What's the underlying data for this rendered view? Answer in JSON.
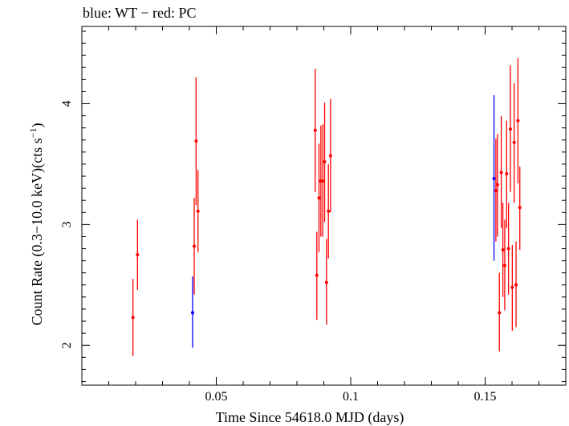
{
  "chart_data": {
    "type": "scatter",
    "title": "blue: WT − red: PC",
    "xlabel": "Time Since 54618.0 MJD (days)",
    "ylabel_main": "Count Rate (0.3−10.0 keV)(cts s",
    "ylabel_sup": "−1",
    "ylabel_end": ")",
    "xlim": [
      0.0,
      0.18
    ],
    "ylim": [
      1.67,
      4.64
    ],
    "x_major_ticks": [
      0.05,
      0.1,
      0.15
    ],
    "x_tick_labels": [
      "0.05",
      "0.1",
      "0.15"
    ],
    "y_major_ticks": [
      2,
      3,
      4
    ],
    "y_tick_labels": [
      "2",
      "3",
      "4"
    ],
    "grid": false,
    "series": [
      {
        "name": "WT",
        "color": "#0000ff",
        "points": [
          {
            "x": 0.0412,
            "y": 2.27,
            "lo": 1.98,
            "hi": 2.57
          },
          {
            "x": 0.1533,
            "y": 3.38,
            "lo": 2.7,
            "hi": 4.07
          }
        ]
      },
      {
        "name": "PC",
        "color": "#ff0000",
        "points": [
          {
            "x": 0.019,
            "y": 2.23,
            "lo": 1.91,
            "hi": 2.55
          },
          {
            "x": 0.0207,
            "y": 2.75,
            "lo": 2.46,
            "hi": 3.04
          },
          {
            "x": 0.0418,
            "y": 2.82,
            "lo": 2.42,
            "hi": 3.22
          },
          {
            "x": 0.0425,
            "y": 3.69,
            "lo": 3.16,
            "hi": 4.22
          },
          {
            "x": 0.0432,
            "y": 3.11,
            "lo": 2.77,
            "hi": 3.45
          },
          {
            "x": 0.0868,
            "y": 3.78,
            "lo": 3.27,
            "hi": 4.29
          },
          {
            "x": 0.0874,
            "y": 2.58,
            "lo": 2.21,
            "hi": 2.94
          },
          {
            "x": 0.0882,
            "y": 3.22,
            "lo": 2.77,
            "hi": 3.67
          },
          {
            "x": 0.0889,
            "y": 3.36,
            "lo": 2.9,
            "hi": 3.82
          },
          {
            "x": 0.0896,
            "y": 3.36,
            "lo": 2.9,
            "hi": 3.83
          },
          {
            "x": 0.0903,
            "y": 3.52,
            "lo": 3.02,
            "hi": 4.01
          },
          {
            "x": 0.091,
            "y": 2.52,
            "lo": 2.17,
            "hi": 2.88
          },
          {
            "x": 0.0917,
            "y": 3.11,
            "lo": 2.72,
            "hi": 3.5
          },
          {
            "x": 0.0925,
            "y": 3.57,
            "lo": 3.1,
            "hi": 4.04
          },
          {
            "x": 0.154,
            "y": 3.28,
            "lo": 2.86,
            "hi": 3.71
          },
          {
            "x": 0.1546,
            "y": 3.33,
            "lo": 2.9,
            "hi": 3.75
          },
          {
            "x": 0.1553,
            "y": 2.27,
            "lo": 1.95,
            "hi": 2.6
          },
          {
            "x": 0.156,
            "y": 3.43,
            "lo": 2.97,
            "hi": 3.9
          },
          {
            "x": 0.1566,
            "y": 2.79,
            "lo": 2.4,
            "hi": 3.18
          },
          {
            "x": 0.1573,
            "y": 2.66,
            "lo": 2.29,
            "hi": 3.04
          },
          {
            "x": 0.158,
            "y": 3.42,
            "lo": 2.97,
            "hi": 3.86
          },
          {
            "x": 0.1587,
            "y": 2.8,
            "lo": 2.42,
            "hi": 3.18
          },
          {
            "x": 0.1594,
            "y": 3.79,
            "lo": 3.27,
            "hi": 4.32
          },
          {
            "x": 0.1601,
            "y": 2.48,
            "lo": 2.12,
            "hi": 2.83
          },
          {
            "x": 0.1608,
            "y": 3.68,
            "lo": 3.18,
            "hi": 4.17
          },
          {
            "x": 0.1615,
            "y": 2.5,
            "lo": 2.15,
            "hi": 2.86
          },
          {
            "x": 0.1622,
            "y": 3.86,
            "lo": 3.34,
            "hi": 4.38
          },
          {
            "x": 0.1629,
            "y": 3.14,
            "lo": 2.79,
            "hi": 3.48
          }
        ]
      }
    ]
  }
}
